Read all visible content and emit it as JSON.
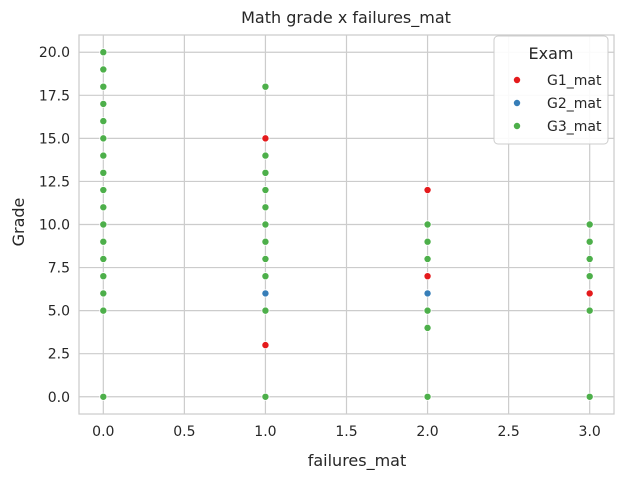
{
  "chart_data": {
    "type": "scatter",
    "title": "Math grade x failures_mat",
    "xlabel": "failures_mat",
    "ylabel": "Grade",
    "xlim": [
      -0.15,
      3.15
    ],
    "ylim": [
      -1.0,
      21.0
    ],
    "xticks": [
      "0.0",
      "0.5",
      "1.0",
      "1.5",
      "2.0",
      "2.5",
      "3.0"
    ],
    "yticks": [
      "0.0",
      "2.5",
      "5.0",
      "7.5",
      "10.0",
      "12.5",
      "15.0",
      "17.5",
      "20.0"
    ],
    "grid": true,
    "legend": {
      "title": "Exam",
      "placement": "top-right"
    },
    "series": [
      {
        "name": "G1_mat",
        "color": "#e41a1c",
        "points": [
          [
            1,
            15
          ],
          [
            1,
            3
          ],
          [
            2,
            12
          ],
          [
            2,
            7
          ],
          [
            3,
            6
          ]
        ]
      },
      {
        "name": "G2_mat",
        "color": "#377eb8",
        "points": [
          [
            1,
            6
          ],
          [
            2,
            6
          ]
        ]
      },
      {
        "name": "G3_mat",
        "color": "#4daf4a",
        "points": [
          [
            0,
            0
          ],
          [
            0,
            5
          ],
          [
            0,
            6
          ],
          [
            0,
            7
          ],
          [
            0,
            8
          ],
          [
            0,
            9
          ],
          [
            0,
            10
          ],
          [
            0,
            11
          ],
          [
            0,
            12
          ],
          [
            0,
            13
          ],
          [
            0,
            14
          ],
          [
            0,
            15
          ],
          [
            0,
            16
          ],
          [
            0,
            17
          ],
          [
            0,
            18
          ],
          [
            0,
            19
          ],
          [
            0,
            20
          ],
          [
            1,
            0
          ],
          [
            1,
            5
          ],
          [
            1,
            7
          ],
          [
            1,
            8
          ],
          [
            1,
            9
          ],
          [
            1,
            10
          ],
          [
            1,
            11
          ],
          [
            1,
            12
          ],
          [
            1,
            13
          ],
          [
            1,
            14
          ],
          [
            1,
            18
          ],
          [
            2,
            0
          ],
          [
            2,
            4
          ],
          [
            2,
            5
          ],
          [
            2,
            8
          ],
          [
            2,
            9
          ],
          [
            2,
            10
          ],
          [
            3,
            0
          ],
          [
            3,
            5
          ],
          [
            3,
            7
          ],
          [
            3,
            8
          ],
          [
            3,
            9
          ],
          [
            3,
            10
          ]
        ]
      }
    ]
  }
}
